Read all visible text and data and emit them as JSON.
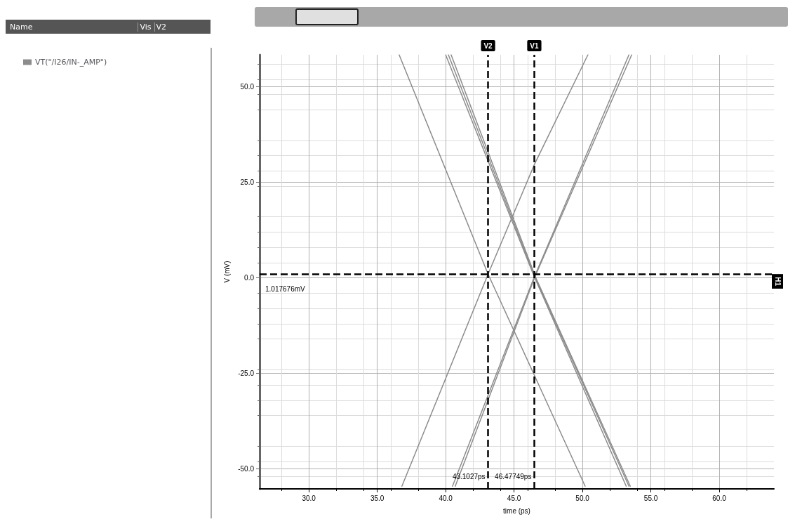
{
  "chart_data": {
    "type": "line",
    "xlabel": "time (ps)",
    "ylabel": "V (mV)",
    "xlim": [
      26.4,
      64
    ],
    "ylim": [
      -55.2,
      58.4
    ],
    "xticks": [
      {
        "value": 30,
        "label": "30.0"
      },
      {
        "value": 35,
        "label": "35.0"
      },
      {
        "value": 40,
        "label": "40.0"
      },
      {
        "value": 45,
        "label": "45.0"
      },
      {
        "value": 50,
        "label": "50.0"
      },
      {
        "value": 55,
        "label": "55.0"
      },
      {
        "value": 60,
        "label": "60.0"
      }
    ],
    "yticks": [
      {
        "value": -50,
        "label": "-50.0"
      },
      {
        "value": -25,
        "label": "-25.0"
      },
      {
        "value": 0,
        "label": "0.0"
      },
      {
        "value": 25,
        "label": "25.0"
      },
      {
        "value": 50,
        "label": "50.0"
      }
    ],
    "grid": true,
    "legend": "top left",
    "marker": "none",
    "line_style": "solid",
    "series": [
      {
        "name": "VT(\"/I26/IN-_AMP\")",
        "color": "#8c8c8c",
        "x": [
          36.6,
          43.1,
          50.2
        ],
        "values": [
          58.4,
          1,
          -54.5
        ]
      },
      {
        "color": "#8c8c8c",
        "x": [
          40.0,
          46.4,
          53.2
        ],
        "values": [
          58.4,
          1,
          -54.5
        ]
      },
      {
        "color": "#8c8c8c",
        "x": [
          40.2,
          46.5,
          53.4
        ],
        "values": [
          58.4,
          0.5,
          -54.5
        ]
      },
      {
        "color": "#8c8c8c",
        "x": [
          40.4,
          46.6,
          53.5
        ],
        "values": [
          58.4,
          0,
          -54.5
        ]
      },
      {
        "color": "#8c8c8c",
        "x": [
          36.8,
          43.1,
          46.5,
          50.4
        ],
        "values": [
          -54.5,
          1,
          29.8,
          58.4
        ]
      },
      {
        "color": "#8c8c8c",
        "x": [
          40.5,
          46.45,
          53.4
        ],
        "values": [
          -54.5,
          0,
          58.4
        ]
      },
      {
        "color": "#8c8c8c",
        "x": [
          40.7,
          46.55,
          53.6
        ],
        "values": [
          -54.5,
          0.5,
          58.4
        ]
      }
    ],
    "ref_lines": [
      {
        "axis": "x",
        "value": 43.1027,
        "label": "V2",
        "color": "#000000",
        "line_style": "dashed"
      },
      {
        "axis": "x",
        "value": 46.47749,
        "label": "V1",
        "color": "#000000",
        "line_style": "dashed"
      },
      {
        "axis": "y",
        "value": 1.017676,
        "label": "H1",
        "color": "#000000",
        "line_style": "dashed"
      }
    ],
    "annotations": [
      {
        "text": "43.1027ps",
        "x": 43.1027,
        "y": -52
      },
      {
        "text": "46.47749ps",
        "x": 46.47749,
        "y": -52
      },
      {
        "text": "1.017676mV",
        "x": 26.4,
        "y": 1.017676
      },
      "Name",
      "Vis",
      "V2"
    ]
  }
}
